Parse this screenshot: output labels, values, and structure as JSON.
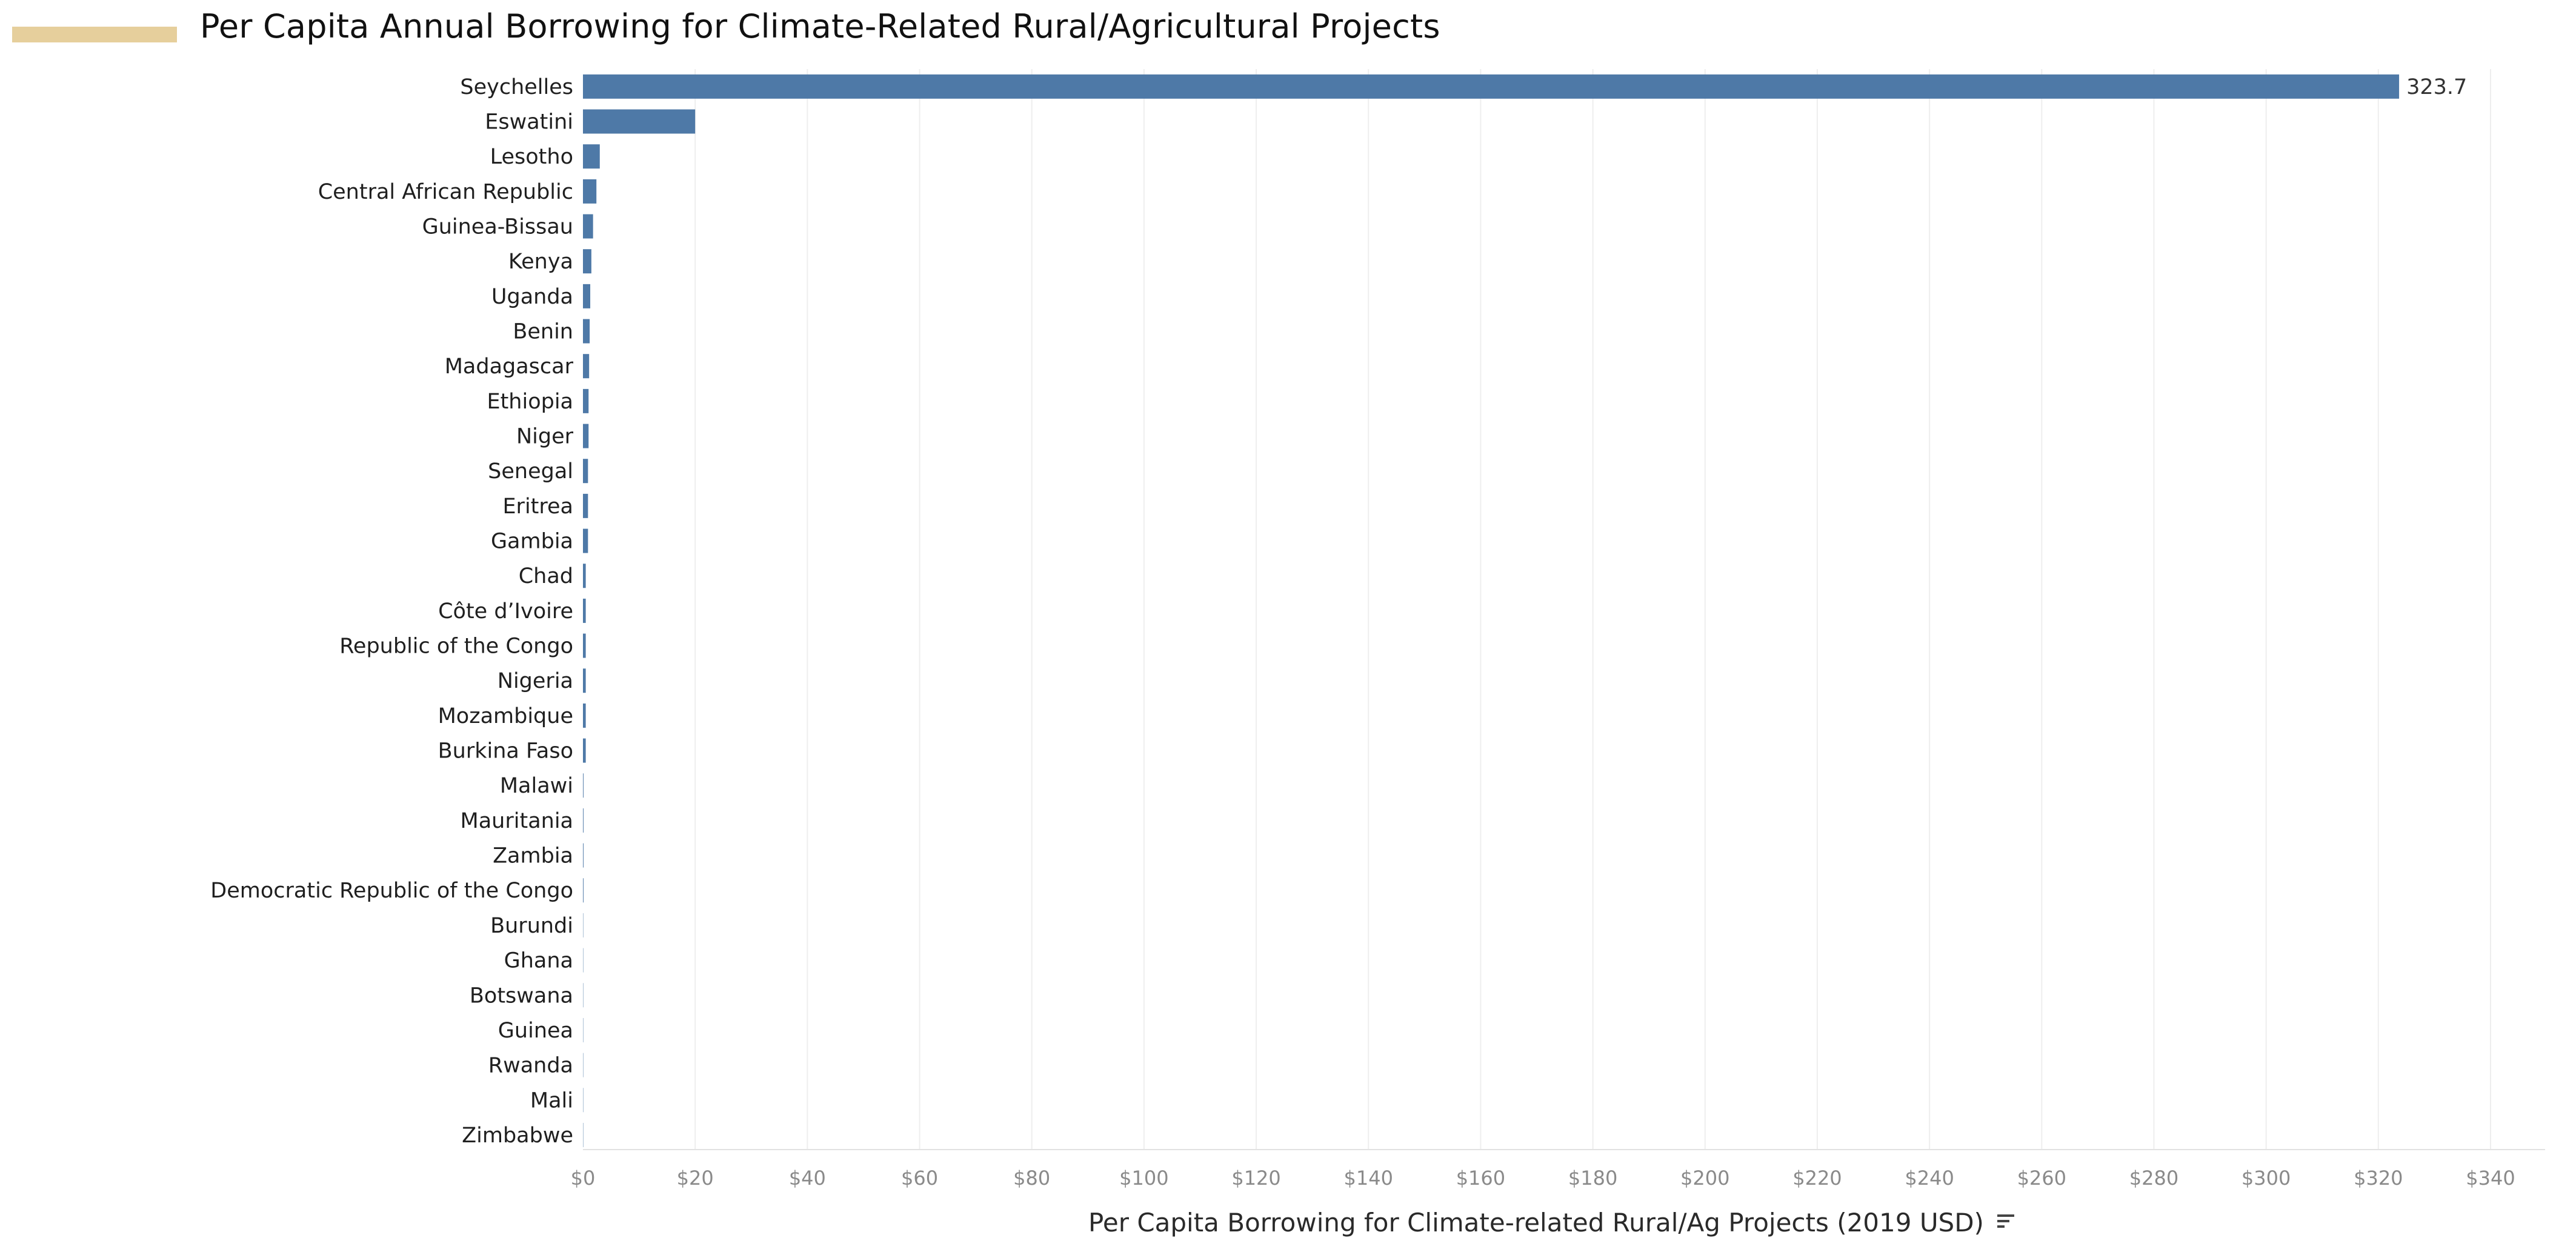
{
  "title": "Per Capita Annual Borrowing for Climate-Related Rural/Agricultural Projects",
  "colors": {
    "bar": "#4e79a7",
    "title_accent": "#e6cf9c"
  },
  "sort_icon": "sort-descending-icon",
  "chart_data": {
    "type": "bar",
    "orientation": "horizontal",
    "title": "Per Capita Annual Borrowing for Climate-Related Rural/Agricultural Projects",
    "xlabel": "Per Capita Borrowing for Climate-related Rural/Ag Projects (2019 USD)",
    "ylabel": "",
    "xlim": [
      0,
      340
    ],
    "x_ticks": [
      0,
      20,
      40,
      60,
      80,
      100,
      120,
      140,
      160,
      180,
      200,
      220,
      240,
      260,
      280,
      300,
      320,
      340
    ],
    "x_tick_labels": [
      "$0",
      "$20",
      "$40",
      "$60",
      "$80",
      "$100",
      "$120",
      "$140",
      "$160",
      "$180",
      "$200",
      "$220",
      "$240",
      "$260",
      "$280",
      "$300",
      "$320",
      "$340"
    ],
    "grid": true,
    "categories": [
      "Seychelles",
      "Eswatini",
      "Lesotho",
      "Central African Republic",
      "Guinea-Bissau",
      "Kenya",
      "Uganda",
      "Benin",
      "Madagascar",
      "Ethiopia",
      "Niger",
      "Senegal",
      "Eritrea",
      "Gambia",
      "Chad",
      "Côte d’Ivoire",
      "Republic of the Congo",
      "Nigeria",
      "Mozambique",
      "Burkina Faso",
      "Malawi",
      "Mauritania",
      "Zambia",
      "Democratic Republic of the Congo",
      "Burundi",
      "Ghana",
      "Botswana",
      "Guinea",
      "Rwanda",
      "Mali",
      "Zimbabwe"
    ],
    "values": [
      323.7,
      20,
      3,
      2.4,
      1.8,
      1.5,
      1.3,
      1.2,
      1.1,
      1.0,
      1.0,
      0.9,
      0.9,
      0.9,
      0.5,
      0.5,
      0.5,
      0.5,
      0.5,
      0.5,
      0.1,
      0.1,
      0.1,
      0.1,
      0.05,
      0.05,
      0.05,
      0.05,
      0.05,
      0.05,
      0.05
    ],
    "data_labels": [
      {
        "category": "Seychelles",
        "text": "323.7"
      }
    ]
  }
}
